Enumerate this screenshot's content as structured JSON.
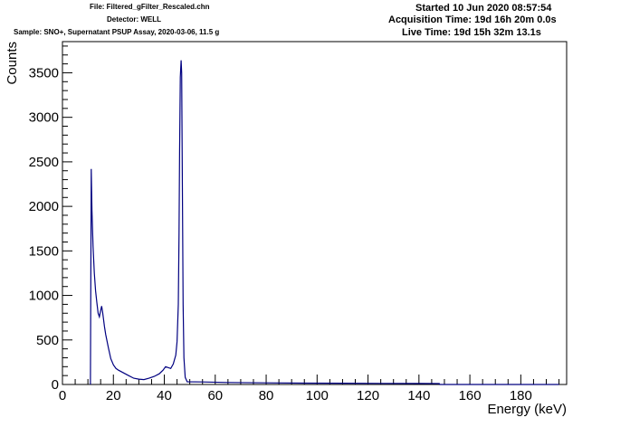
{
  "header": {
    "file": "File: Filtered_gFilter_Rescaled.chn",
    "detector": "Detector: WELL",
    "sample": "Sample: SNO+, Supernatant PSUP Assay, 2020-03-06, 11.5 g",
    "started": "Started 10 Jun 2020 08:57:54",
    "acquisition": "Acquisition Time: 19d 16h 20m 0.0s",
    "live": "Live Time: 19d 15h 32m 13.1s"
  },
  "chart_data": {
    "type": "line",
    "xlabel": "Energy (keV)",
    "ylabel": "Counts",
    "xlim": [
      0,
      198
    ],
    "ylim": [
      0,
      3850
    ],
    "x_ticks": [
      0,
      20,
      40,
      60,
      80,
      100,
      120,
      140,
      160,
      180
    ],
    "y_ticks": [
      0,
      500,
      1000,
      1500,
      2000,
      2500,
      3000,
      3500
    ],
    "x_tick_labels": [
      "0",
      "20",
      "40",
      "60",
      "80",
      "100",
      "120",
      "140",
      "160",
      "180"
    ],
    "y_tick_labels": [
      "0",
      "500",
      "1000",
      "1500",
      "2000",
      "2500",
      "3000",
      "3500"
    ],
    "line_color": "#000080",
    "series": [
      {
        "points": [
          [
            11.0,
            0
          ],
          [
            11.3,
            2420
          ],
          [
            11.6,
            1950
          ],
          [
            12.0,
            1550
          ],
          [
            12.5,
            1250
          ],
          [
            13.0,
            1050
          ],
          [
            13.5,
            920
          ],
          [
            14.0,
            800
          ],
          [
            14.5,
            760
          ],
          [
            15.0,
            830
          ],
          [
            15.4,
            880
          ],
          [
            15.8,
            810
          ],
          [
            16.5,
            650
          ],
          [
            17.0,
            560
          ],
          [
            18.0,
            420
          ],
          [
            19.0,
            290
          ],
          [
            20.0,
            220
          ],
          [
            21.0,
            180
          ],
          [
            22.0,
            160
          ],
          [
            24.0,
            130
          ],
          [
            26.0,
            100
          ],
          [
            28.0,
            70
          ],
          [
            30.0,
            60
          ],
          [
            32.0,
            55
          ],
          [
            34.0,
            70
          ],
          [
            36.0,
            90
          ],
          [
            38.0,
            120
          ],
          [
            39.5,
            160
          ],
          [
            40.5,
            200
          ],
          [
            41.5,
            190
          ],
          [
            42.5,
            180
          ],
          [
            43.5,
            230
          ],
          [
            44.5,
            330
          ],
          [
            45.0,
            480
          ],
          [
            45.5,
            900
          ],
          [
            45.8,
            1700
          ],
          [
            46.0,
            2600
          ],
          [
            46.3,
            3450
          ],
          [
            46.6,
            3640
          ],
          [
            46.8,
            3500
          ],
          [
            47.1,
            2200
          ],
          [
            47.4,
            900
          ],
          [
            47.7,
            300
          ],
          [
            48.2,
            80
          ],
          [
            49.0,
            30
          ],
          [
            55,
            28
          ],
          [
            65,
            22
          ],
          [
            80,
            18
          ],
          [
            95,
            15
          ],
          [
            110,
            14
          ],
          [
            125,
            12
          ],
          [
            140,
            11
          ],
          [
            148,
            10
          ],
          [
            148.2,
            0
          ],
          [
            195,
            0
          ]
        ]
      }
    ]
  }
}
